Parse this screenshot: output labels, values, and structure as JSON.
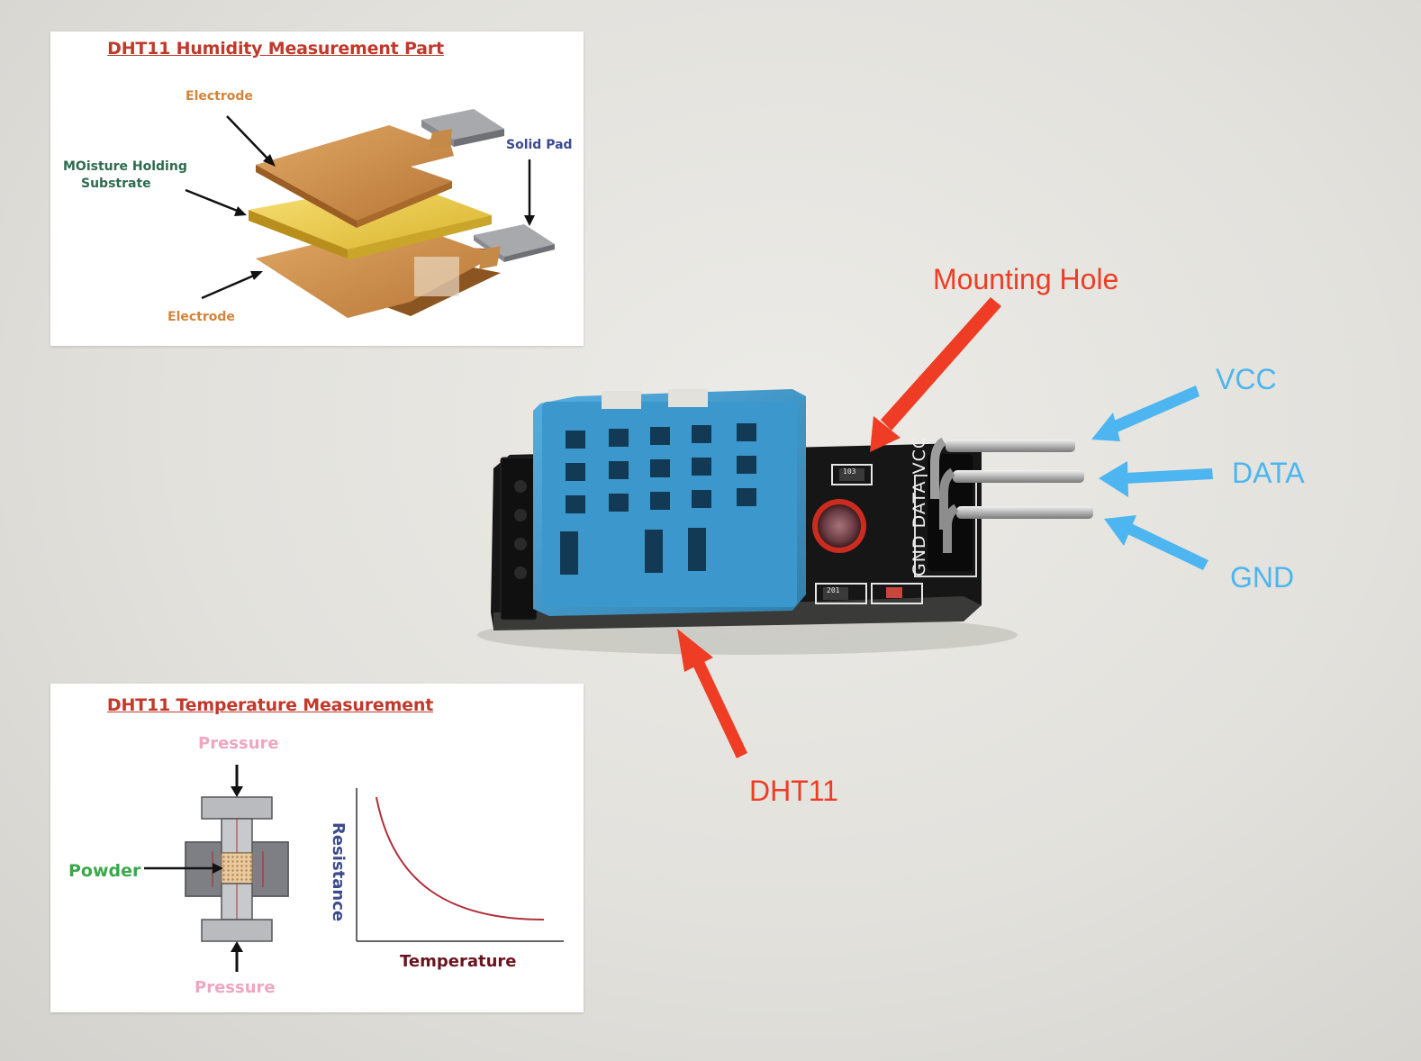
{
  "humidity_panel": {
    "title": "DHT11 Humidity Measurement Part",
    "electrode_top": "Electrode",
    "moisture_line1": "MOisture Holding",
    "moisture_line2": "Substrate",
    "solid_pad": "Solid Pad",
    "electrode_bottom": "Electrode"
  },
  "temperature_panel": {
    "title": "DHT11 Temperature Measurement",
    "pressure_top": "Pressure",
    "powder": "Powder",
    "pressure_bottom": "Pressure",
    "graph_ylabel": "Resistance",
    "graph_xlabel": "Temperature"
  },
  "callouts": {
    "mounting_hole": "Mounting Hole",
    "vcc": "VCC",
    "data": "DATA",
    "gnd": "GND",
    "dht11": "DHT11"
  },
  "board_silkscreen": {
    "pin_labels": "GND DATA VCC",
    "resistor_top": "103",
    "resistor_bottom": "201"
  },
  "colors": {
    "callout_red": "#ee3d24",
    "callout_blue": "#4db5ef",
    "sensor_blue": "#3f97c7",
    "board_black": "#141414"
  }
}
